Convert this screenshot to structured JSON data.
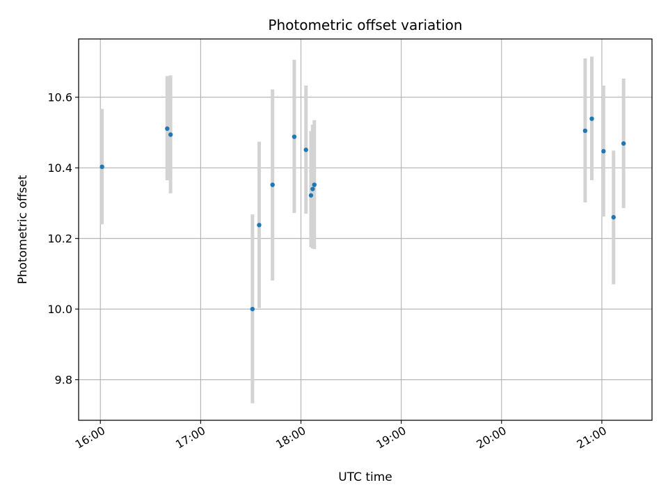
{
  "chart_data": {
    "type": "scatter",
    "title": "Photometric offset variation",
    "xlabel": "UTC time",
    "ylabel": "Photometric offset",
    "grid": true,
    "x_axis": {
      "type": "time",
      "range": [
        "15:47",
        "21:30"
      ],
      "ticks": [
        "16:00",
        "17:00",
        "18:00",
        "19:00",
        "20:00",
        "21:00"
      ]
    },
    "y_axis": {
      "range": [
        9.685,
        10.765
      ],
      "ticks": [
        9.8,
        10.0,
        10.2,
        10.4,
        10.6
      ],
      "tick_labels": [
        "9.8",
        "10.0",
        "10.2",
        "10.4",
        "10.6"
      ]
    },
    "errorbar_color": "#d3d3d3",
    "point_color": "#1f77b4",
    "points": [
      {
        "x": "16:01",
        "y": 10.403,
        "ylow": 10.24,
        "yhigh": 10.567
      },
      {
        "x": "16:40",
        "y": 10.511,
        "ylow": 10.365,
        "yhigh": 10.66
      },
      {
        "x": "16:42",
        "y": 10.494,
        "ylow": 10.328,
        "yhigh": 10.662
      },
      {
        "x": "17:31",
        "y": 10.0,
        "ylow": 9.733,
        "yhigh": 10.268
      },
      {
        "x": "17:35",
        "y": 10.238,
        "ylow": 10.003,
        "yhigh": 10.474
      },
      {
        "x": "17:43",
        "y": 10.352,
        "ylow": 10.081,
        "yhigh": 10.622
      },
      {
        "x": "17:56",
        "y": 10.488,
        "ylow": 10.272,
        "yhigh": 10.706
      },
      {
        "x": "18:03",
        "y": 10.451,
        "ylow": 10.27,
        "yhigh": 10.633
      },
      {
        "x": "18:06",
        "y": 10.322,
        "ylow": 10.175,
        "yhigh": 10.504
      },
      {
        "x": "18:07",
        "y": 10.34,
        "ylow": 10.172,
        "yhigh": 10.522
      },
      {
        "x": "18:08",
        "y": 10.352,
        "ylow": 10.17,
        "yhigh": 10.535
      },
      {
        "x": "20:50",
        "y": 10.505,
        "ylow": 10.302,
        "yhigh": 10.71
      },
      {
        "x": "20:54",
        "y": 10.539,
        "ylow": 10.365,
        "yhigh": 10.715
      },
      {
        "x": "21:01",
        "y": 10.447,
        "ylow": 10.262,
        "yhigh": 10.633
      },
      {
        "x": "21:07",
        "y": 10.26,
        "ylow": 10.07,
        "yhigh": 10.449
      },
      {
        "x": "21:13",
        "y": 10.469,
        "ylow": 10.286,
        "yhigh": 10.653
      }
    ]
  }
}
